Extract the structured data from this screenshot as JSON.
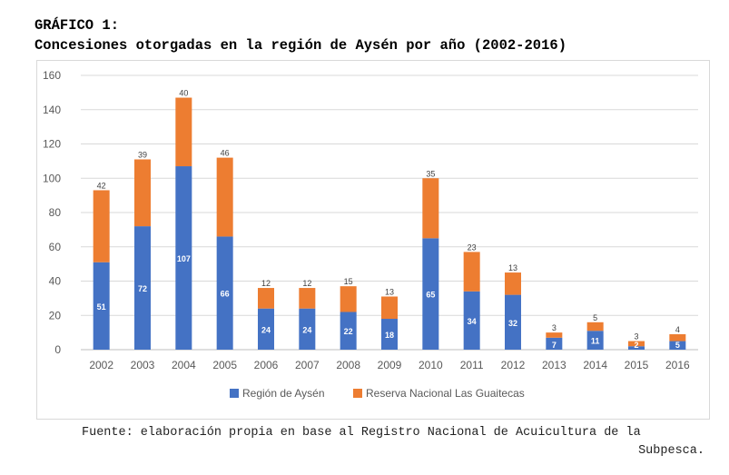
{
  "heading": {
    "label": "GRÁFICO 1:",
    "title": "Concesiones otorgadas en la región de Aysén por año (2002-2016)"
  },
  "source": {
    "line1": "Fuente: elaboración propia en base al Registro Nacional de Acuicultura de la",
    "line2": "Subpesca."
  },
  "chart_data": {
    "type": "bar",
    "stacked": true,
    "categories": [
      "2002",
      "2003",
      "2004",
      "2005",
      "2006",
      "2007",
      "2008",
      "2009",
      "2010",
      "2011",
      "2012",
      "2013",
      "2014",
      "2015",
      "2016"
    ],
    "series": [
      {
        "name": "Región de Aysén",
        "color": "#4472c4",
        "values": [
          51,
          72,
          107,
          66,
          24,
          24,
          22,
          18,
          65,
          34,
          32,
          7,
          11,
          2,
          5
        ]
      },
      {
        "name": "Reserva Nacional Las Guaitecas",
        "color": "#ed7d31",
        "values": [
          42,
          39,
          40,
          46,
          12,
          12,
          15,
          13,
          35,
          23,
          13,
          3,
          5,
          3,
          4
        ]
      }
    ],
    "ylim": [
      0,
      160
    ],
    "yticks": [
      0,
      20,
      40,
      60,
      80,
      100,
      120,
      140,
      160
    ],
    "grid": true,
    "legend_position": "bottom",
    "xlabel": "",
    "ylabel": ""
  }
}
